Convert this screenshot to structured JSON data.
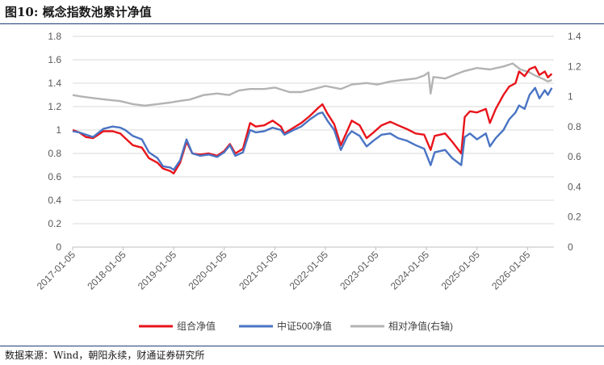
{
  "figure": {
    "title": "图10: 概念指数池累计净值",
    "source": "数据来源：Wind，朝阳永续，财通证券研究所"
  },
  "colors": {
    "combo": "#e8141b",
    "csi500": "#4a74c4",
    "relative": "#b3b3b3"
  },
  "chart_data": {
    "type": "line",
    "title": "",
    "xlabel": "",
    "ylabel": "",
    "x_ticks": [
      "2017-01-05",
      "2018-01-05",
      "2019-01-05",
      "2020-01-05",
      "2021-01-05",
      "2022-01-05",
      "2023-01-05",
      "2024-01-05",
      "2025-01-05",
      "2026-01-05"
    ],
    "x_range": [
      "2017-01-05",
      "2026-07-15"
    ],
    "y_left": {
      "range": [
        0,
        1.8
      ],
      "ticks": [
        "0",
        "0.2",
        "0.4",
        "0.6",
        "0.8",
        "1",
        "1.2",
        "1.4",
        "1.6",
        "1.8"
      ]
    },
    "y_right": {
      "range": [
        0,
        1.4
      ],
      "ticks": [
        "0",
        "0.2",
        "0.4",
        "0.6",
        "0.8",
        "1",
        "1.2",
        "1.4"
      ]
    },
    "grid": "horizontal",
    "legend_position": "bottom",
    "series": [
      {
        "name": "组合净值",
        "axis": "left",
        "color": "#e8141b",
        "points": [
          [
            "2017-01-05",
            1.0
          ],
          [
            "2017-02-20",
            0.98
          ],
          [
            "2017-04-10",
            0.94
          ],
          [
            "2017-06-01",
            0.93
          ],
          [
            "2017-08-15",
            0.99
          ],
          [
            "2017-10-20",
            0.99
          ],
          [
            "2017-12-15",
            0.97
          ],
          [
            "2018-01-20",
            0.93
          ],
          [
            "2018-03-15",
            0.87
          ],
          [
            "2018-05-20",
            0.85
          ],
          [
            "2018-07-10",
            0.76
          ],
          [
            "2018-09-10",
            0.72
          ],
          [
            "2018-10-20",
            0.67
          ],
          [
            "2018-12-10",
            0.65
          ],
          [
            "2019-01-05",
            0.63
          ],
          [
            "2019-02-20",
            0.72
          ],
          [
            "2019-04-08",
            0.9
          ],
          [
            "2019-05-20",
            0.8
          ],
          [
            "2019-07-15",
            0.79
          ],
          [
            "2019-09-15",
            0.8
          ],
          [
            "2019-11-15",
            0.78
          ],
          [
            "2020-01-05",
            0.82
          ],
          [
            "2020-02-15",
            0.88
          ],
          [
            "2020-03-25",
            0.8
          ],
          [
            "2020-05-20",
            0.84
          ],
          [
            "2020-07-10",
            1.06
          ],
          [
            "2020-08-20",
            1.03
          ],
          [
            "2020-10-20",
            1.04
          ],
          [
            "2020-12-20",
            1.08
          ],
          [
            "2021-02-18",
            1.03
          ],
          [
            "2021-03-15",
            0.97
          ],
          [
            "2021-05-20",
            1.02
          ],
          [
            "2021-07-15",
            1.06
          ],
          [
            "2021-09-15",
            1.12
          ],
          [
            "2021-11-15",
            1.19
          ],
          [
            "2021-12-15",
            1.22
          ],
          [
            "2022-01-20",
            1.14
          ],
          [
            "2022-03-10",
            1.05
          ],
          [
            "2022-04-27",
            0.87
          ],
          [
            "2022-06-15",
            1.0
          ],
          [
            "2022-07-15",
            1.08
          ],
          [
            "2022-09-10",
            1.04
          ],
          [
            "2022-10-30",
            0.93
          ],
          [
            "2022-12-20",
            0.98
          ],
          [
            "2023-02-15",
            1.04
          ],
          [
            "2023-04-20",
            1.07
          ],
          [
            "2023-06-15",
            1.04
          ],
          [
            "2023-08-15",
            1.01
          ],
          [
            "2023-10-20",
            0.97
          ],
          [
            "2023-12-20",
            0.96
          ],
          [
            "2024-02-05",
            0.83
          ],
          [
            "2024-03-05",
            0.95
          ],
          [
            "2024-05-20",
            0.97
          ],
          [
            "2024-07-10",
            0.9
          ],
          [
            "2024-09-13",
            0.8
          ],
          [
            "2024-10-08",
            1.11
          ],
          [
            "2024-11-15",
            1.16
          ],
          [
            "2025-01-05",
            1.15
          ],
          [
            "2025-03-10",
            1.18
          ],
          [
            "2025-04-08",
            1.06
          ],
          [
            "2025-05-20",
            1.18
          ],
          [
            "2025-07-15",
            1.3
          ],
          [
            "2025-08-25",
            1.37
          ],
          [
            "2025-10-10",
            1.4
          ],
          [
            "2025-11-05",
            1.5
          ],
          [
            "2025-12-15",
            1.46
          ],
          [
            "2026-01-20",
            1.52
          ],
          [
            "2026-03-01",
            1.54
          ],
          [
            "2026-04-01",
            1.47
          ],
          [
            "2026-05-10",
            1.5
          ],
          [
            "2026-06-01",
            1.45
          ],
          [
            "2026-06-30",
            1.48
          ]
        ]
      },
      {
        "name": "中证500净值",
        "axis": "left",
        "color": "#4a74c4",
        "points": [
          [
            "2017-01-05",
            0.99
          ],
          [
            "2017-02-20",
            0.98
          ],
          [
            "2017-04-10",
            0.96
          ],
          [
            "2017-06-01",
            0.94
          ],
          [
            "2017-08-15",
            1.01
          ],
          [
            "2017-10-20",
            1.03
          ],
          [
            "2017-12-15",
            1.02
          ],
          [
            "2018-01-20",
            1.0
          ],
          [
            "2018-03-15",
            0.95
          ],
          [
            "2018-05-20",
            0.92
          ],
          [
            "2018-07-10",
            0.81
          ],
          [
            "2018-09-10",
            0.76
          ],
          [
            "2018-10-20",
            0.69
          ],
          [
            "2018-12-10",
            0.68
          ],
          [
            "2019-01-05",
            0.66
          ],
          [
            "2019-02-20",
            0.74
          ],
          [
            "2019-04-08",
            0.92
          ],
          [
            "2019-05-20",
            0.8
          ],
          [
            "2019-07-15",
            0.78
          ],
          [
            "2019-09-15",
            0.79
          ],
          [
            "2019-11-15",
            0.77
          ],
          [
            "2020-01-05",
            0.81
          ],
          [
            "2020-02-15",
            0.87
          ],
          [
            "2020-03-25",
            0.78
          ],
          [
            "2020-05-20",
            0.81
          ],
          [
            "2020-07-10",
            1.0
          ],
          [
            "2020-08-20",
            0.98
          ],
          [
            "2020-10-20",
            0.99
          ],
          [
            "2020-12-20",
            1.02
          ],
          [
            "2021-02-18",
            1.0
          ],
          [
            "2021-03-15",
            0.96
          ],
          [
            "2021-05-20",
            1.0
          ],
          [
            "2021-07-15",
            1.03
          ],
          [
            "2021-09-15",
            1.09
          ],
          [
            "2021-11-15",
            1.14
          ],
          [
            "2021-12-15",
            1.15
          ],
          [
            "2022-01-20",
            1.08
          ],
          [
            "2022-03-10",
            1.0
          ],
          [
            "2022-04-27",
            0.83
          ],
          [
            "2022-06-15",
            0.95
          ],
          [
            "2022-07-15",
            0.99
          ],
          [
            "2022-09-10",
            0.95
          ],
          [
            "2022-10-30",
            0.86
          ],
          [
            "2022-12-20",
            0.91
          ],
          [
            "2023-02-15",
            0.96
          ],
          [
            "2023-04-20",
            0.97
          ],
          [
            "2023-06-15",
            0.93
          ],
          [
            "2023-08-15",
            0.91
          ],
          [
            "2023-10-20",
            0.87
          ],
          [
            "2023-12-20",
            0.84
          ],
          [
            "2024-02-05",
            0.7
          ],
          [
            "2024-03-05",
            0.81
          ],
          [
            "2024-05-20",
            0.83
          ],
          [
            "2024-07-10",
            0.76
          ],
          [
            "2024-09-13",
            0.7
          ],
          [
            "2024-10-08",
            0.94
          ],
          [
            "2024-11-15",
            0.97
          ],
          [
            "2025-01-05",
            0.92
          ],
          [
            "2025-03-10",
            0.97
          ],
          [
            "2025-04-08",
            0.86
          ],
          [
            "2025-05-20",
            0.93
          ],
          [
            "2025-07-15",
            1.0
          ],
          [
            "2025-08-25",
            1.09
          ],
          [
            "2025-10-10",
            1.15
          ],
          [
            "2025-11-05",
            1.21
          ],
          [
            "2025-12-15",
            1.18
          ],
          [
            "2026-01-20",
            1.3
          ],
          [
            "2026-03-01",
            1.36
          ],
          [
            "2026-04-01",
            1.27
          ],
          [
            "2026-05-10",
            1.34
          ],
          [
            "2026-06-01",
            1.3
          ],
          [
            "2026-06-30",
            1.36
          ]
        ]
      },
      {
        "name": "相对净值(右轴)",
        "axis": "right",
        "color": "#b3b3b3",
        "points": [
          [
            "2017-01-05",
            1.01
          ],
          [
            "2017-03-10",
            1.0
          ],
          [
            "2017-06-01",
            0.99
          ],
          [
            "2017-09-01",
            0.98
          ],
          [
            "2017-12-15",
            0.97
          ],
          [
            "2018-03-15",
            0.95
          ],
          [
            "2018-06-10",
            0.94
          ],
          [
            "2018-09-10",
            0.95
          ],
          [
            "2018-12-10",
            0.96
          ],
          [
            "2019-02-10",
            0.97
          ],
          [
            "2019-05-01",
            0.98
          ],
          [
            "2019-08-10",
            1.01
          ],
          [
            "2019-11-15",
            1.02
          ],
          [
            "2020-02-10",
            1.01
          ],
          [
            "2020-04-20",
            1.04
          ],
          [
            "2020-07-10",
            1.05
          ],
          [
            "2020-10-20",
            1.05
          ],
          [
            "2021-01-05",
            1.06
          ],
          [
            "2021-04-20",
            1.03
          ],
          [
            "2021-07-15",
            1.03
          ],
          [
            "2021-10-15",
            1.05
          ],
          [
            "2022-01-05",
            1.07
          ],
          [
            "2022-04-27",
            1.05
          ],
          [
            "2022-07-15",
            1.08
          ],
          [
            "2022-10-30",
            1.09
          ],
          [
            "2023-01-15",
            1.08
          ],
          [
            "2023-04-20",
            1.1
          ],
          [
            "2023-07-15",
            1.11
          ],
          [
            "2023-10-20",
            1.12
          ],
          [
            "2023-12-20",
            1.14
          ],
          [
            "2024-01-20",
            1.16
          ],
          [
            "2024-02-05",
            1.02
          ],
          [
            "2024-02-25",
            1.13
          ],
          [
            "2024-05-20",
            1.12
          ],
          [
            "2024-08-10",
            1.15
          ],
          [
            "2024-10-08",
            1.17
          ],
          [
            "2025-01-05",
            1.19
          ],
          [
            "2025-04-08",
            1.18
          ],
          [
            "2025-07-15",
            1.2
          ],
          [
            "2025-09-20",
            1.22
          ],
          [
            "2025-11-15",
            1.18
          ],
          [
            "2026-01-20",
            1.16
          ],
          [
            "2026-03-01",
            1.14
          ],
          [
            "2026-04-20",
            1.12
          ],
          [
            "2026-06-01",
            1.1
          ],
          [
            "2026-06-30",
            1.11
          ]
        ]
      }
    ]
  }
}
